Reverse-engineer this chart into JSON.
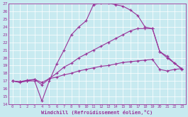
{
  "xlabel": "Windchill (Refroidissement éolien,°C)",
  "xlim": [
    -0.5,
    23.5
  ],
  "ylim": [
    14,
    27
  ],
  "xticks": [
    0,
    1,
    2,
    3,
    4,
    5,
    6,
    7,
    8,
    9,
    10,
    11,
    12,
    13,
    14,
    15,
    16,
    17,
    18,
    19,
    20,
    21,
    22,
    23
  ],
  "yticks": [
    14,
    15,
    16,
    17,
    18,
    19,
    20,
    21,
    22,
    23,
    24,
    25,
    26,
    27
  ],
  "bg_color": "#c8eaf0",
  "line_color": "#993399",
  "curve1_x": [
    0,
    1,
    2,
    3,
    4,
    5,
    6,
    7,
    8,
    9,
    10,
    11,
    12,
    13,
    14,
    15,
    16,
    17,
    18,
    19,
    20,
    21,
    22,
    23
  ],
  "curve1_y": [
    17.0,
    16.8,
    17.0,
    17.0,
    14.4,
    17.0,
    19.2,
    21.0,
    23.0,
    24.0,
    24.8,
    26.9,
    27.1,
    27.1,
    26.9,
    26.7,
    26.2,
    25.5,
    24.0,
    23.8,
    20.8,
    20.2,
    19.3,
    18.5
  ],
  "curve2_x": [
    0,
    1,
    2,
    3,
    4,
    5,
    6,
    7,
    8,
    9,
    10,
    11,
    12,
    13,
    14,
    15,
    16,
    17,
    18,
    19,
    20,
    21,
    22,
    23
  ],
  "curve2_y": [
    17.0,
    16.9,
    17.0,
    17.2,
    16.5,
    17.3,
    18.0,
    18.8,
    19.3,
    20.0,
    20.5,
    21.0,
    21.5,
    22.0,
    22.5,
    23.0,
    23.5,
    23.8,
    23.8,
    23.8,
    20.8,
    20.0,
    19.3,
    18.6
  ],
  "curve3_x": [
    0,
    1,
    2,
    3,
    4,
    5,
    6,
    7,
    8,
    9,
    10,
    11,
    12,
    13,
    14,
    15,
    16,
    17,
    18,
    19,
    20,
    21,
    22,
    23
  ],
  "curve3_y": [
    17.0,
    16.9,
    17.1,
    17.2,
    16.8,
    17.3,
    17.5,
    17.8,
    18.0,
    18.3,
    18.5,
    18.7,
    18.9,
    19.0,
    19.2,
    19.4,
    19.5,
    19.6,
    19.7,
    19.8,
    18.5,
    18.3,
    18.5,
    18.6
  ],
  "marker": "+",
  "markersize": 3.0,
  "linewidth": 0.8
}
